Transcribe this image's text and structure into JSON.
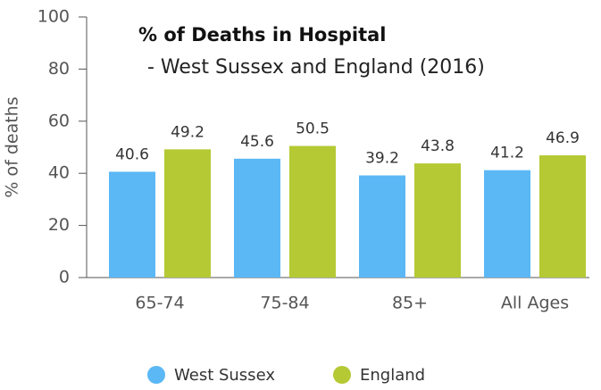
{
  "chart_data": {
    "type": "bar",
    "title": "% of Deaths in Hospital",
    "subtitle": "- West Sussex and England (2016)",
    "y_label": "% of deaths",
    "categories": [
      "65-74",
      "75-84",
      "85+",
      "All Ages"
    ],
    "series": [
      {
        "name": "West Sussex",
        "color": "#5bb8f5",
        "values": [
          40.6,
          45.6,
          39.2,
          41.2
        ]
      },
      {
        "name": "England",
        "color": "#b5c934",
        "values": [
          49.2,
          50.5,
          43.8,
          46.9
        ]
      }
    ],
    "ylim": [
      0,
      100
    ],
    "yticks": [
      0,
      20,
      40,
      60,
      80,
      100
    ],
    "grid": false,
    "legend": "bottom"
  }
}
